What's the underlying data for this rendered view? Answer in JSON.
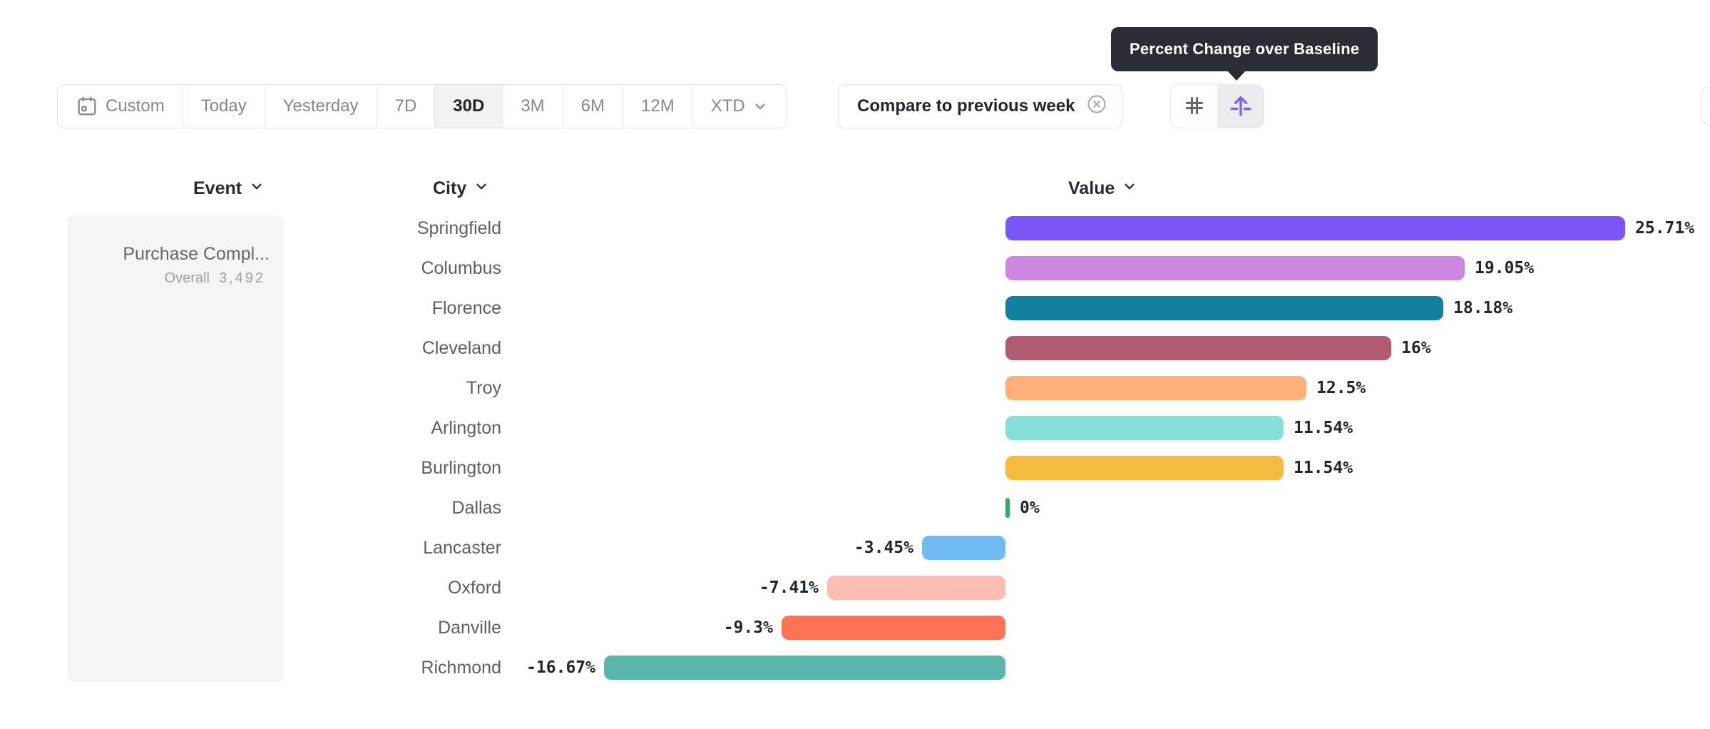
{
  "tooltip": {
    "text": "Percent Change over Baseline"
  },
  "toolbar": {
    "date_ranges": [
      {
        "label": "Custom",
        "icon": "calendar-icon",
        "selected": false
      },
      {
        "label": "Today",
        "selected": false
      },
      {
        "label": "Yesterday",
        "selected": false
      },
      {
        "label": "7D",
        "selected": false
      },
      {
        "label": "30D",
        "selected": true
      },
      {
        "label": "3M",
        "selected": false
      },
      {
        "label": "6M",
        "selected": false
      },
      {
        "label": "12M",
        "selected": false
      },
      {
        "label": "XTD",
        "chevron": true,
        "selected": false
      }
    ],
    "compare": {
      "label": "Compare to previous week",
      "icon": "x-circle-icon"
    },
    "view_toggle": [
      {
        "name": "grid-view",
        "icon": "hash-icon",
        "selected": false
      },
      {
        "name": "percent-change-view",
        "icon": "arrow-up-from-line-icon",
        "selected": true
      }
    ]
  },
  "columns": {
    "event": {
      "label": "Event"
    },
    "city": {
      "label": "City"
    },
    "value": {
      "label": "Value"
    }
  },
  "event_panel": {
    "title": "Purchase Compl...",
    "overall_label": "Overall",
    "overall_value": "3,492"
  },
  "chart_data": {
    "type": "bar",
    "orientation": "horizontal",
    "title": "Percent Change over Baseline",
    "xlabel": "Value",
    "ylabel": "City",
    "unit": "%",
    "categories": [
      "Springfield",
      "Columbus",
      "Florence",
      "Cleveland",
      "Troy",
      "Arlington",
      "Burlington",
      "Dallas",
      "Lancaster",
      "Oxford",
      "Danville",
      "Richmond"
    ],
    "values": [
      25.71,
      19.05,
      18.18,
      16,
      12.5,
      11.54,
      11.54,
      0,
      -3.45,
      -7.41,
      -9.3,
      -16.67
    ],
    "value_labels": [
      "25.71%",
      "19.05%",
      "18.18%",
      "16%",
      "12.5%",
      "11.54%",
      "11.54%",
      "0%",
      "-3.45%",
      "-7.41%",
      "-9.3%",
      "-16.67%"
    ],
    "colors": [
      "#7957f8",
      "#cb87e2",
      "#1480a0",
      "#b25a71",
      "#feb07b",
      "#85ded7",
      "#f5bb41",
      "#2eaf64",
      "#70bbf2",
      "#fcbdb5",
      "#fd7356",
      "#5ab5ab"
    ]
  }
}
